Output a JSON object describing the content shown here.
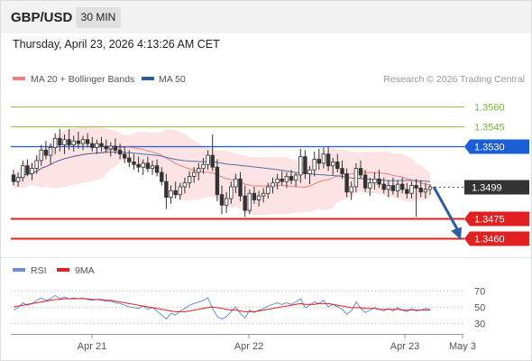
{
  "header": {
    "symbol": "GBP/USD",
    "timeframe": "30 MIN",
    "datetime": "Thursday, April 23, 2026 4:13:26 AM CET"
  },
  "legend": {
    "ma20_label": "MA 20 + Bollinger Bands",
    "ma50_label": "MA 50",
    "copyright": "Research © 2026 Trading Central",
    "ma20_color": "#f08080",
    "ma50_color": "#2c5f9e",
    "band_color": "#fde3e3"
  },
  "chart_data": {
    "type": "candlestick",
    "price_axis": {
      "ylim": [
        1.3448,
        1.3572
      ]
    },
    "levels": [
      {
        "price": "1.3560",
        "style": "green-line",
        "color": "#8dc63f"
      },
      {
        "price": "1.3545",
        "style": "green-line",
        "color": "#8dc63f"
      },
      {
        "price": "1.3530",
        "style": "resistance",
        "color": "#1a5fd6"
      },
      {
        "price": "1.3499",
        "style": "last-price",
        "color": "#333333"
      },
      {
        "price": "1.3475",
        "style": "support",
        "color": "#e02020"
      },
      {
        "price": "1.3460",
        "style": "support",
        "color": "#e02020"
      }
    ],
    "projection": {
      "from": 1.3499,
      "to": 1.346,
      "color": "#2c5f9e"
    },
    "x_labels": [
      "Apr 21",
      "Apr 22",
      "Apr 23",
      "May 3"
    ],
    "ohlc": [
      [
        1.3508,
        1.3512,
        1.35,
        1.3503
      ],
      [
        1.3503,
        1.351,
        1.3499,
        1.3506
      ],
      [
        1.3506,
        1.3519,
        1.3503,
        1.3515
      ],
      [
        1.3515,
        1.352,
        1.3507,
        1.3509
      ],
      [
        1.3509,
        1.3517,
        1.3504,
        1.3513
      ],
      [
        1.3513,
        1.3523,
        1.3509,
        1.3519
      ],
      [
        1.3519,
        1.3531,
        1.3515,
        1.3527
      ],
      [
        1.3527,
        1.3534,
        1.352,
        1.3523
      ],
      [
        1.3523,
        1.3532,
        1.3516,
        1.3529
      ],
      [
        1.3529,
        1.354,
        1.3524,
        1.3536
      ],
      [
        1.3536,
        1.3543,
        1.3526,
        1.3531
      ],
      [
        1.3531,
        1.3539,
        1.3524,
        1.3535
      ],
      [
        1.3535,
        1.3543,
        1.3527,
        1.3531
      ],
      [
        1.3531,
        1.3538,
        1.3526,
        1.3534
      ],
      [
        1.3534,
        1.3541,
        1.3528,
        1.3532
      ],
      [
        1.3532,
        1.3538,
        1.3527,
        1.3535
      ],
      [
        1.3535,
        1.354,
        1.3529,
        1.3532
      ],
      [
        1.3532,
        1.3537,
        1.3526,
        1.3529
      ],
      [
        1.3529,
        1.3535,
        1.3524,
        1.3532
      ],
      [
        1.3532,
        1.3537,
        1.3526,
        1.353
      ],
      [
        1.353,
        1.3535,
        1.3525,
        1.3528
      ],
      [
        1.3528,
        1.3533,
        1.3522,
        1.353
      ],
      [
        1.353,
        1.3536,
        1.3524,
        1.3527
      ],
      [
        1.3527,
        1.3532,
        1.352,
        1.3524
      ],
      [
        1.3524,
        1.353,
        1.3517,
        1.3521
      ],
      [
        1.3521,
        1.3527,
        1.3514,
        1.3518
      ],
      [
        1.3518,
        1.3524,
        1.3512,
        1.3516
      ],
      [
        1.3516,
        1.3522,
        1.351,
        1.3514
      ],
      [
        1.3514,
        1.352,
        1.3508,
        1.3517
      ],
      [
        1.3517,
        1.3522,
        1.351,
        1.3513
      ],
      [
        1.3513,
        1.3519,
        1.3508,
        1.3515
      ],
      [
        1.3515,
        1.352,
        1.3507,
        1.351
      ],
      [
        1.351,
        1.3514,
        1.35,
        1.3503
      ],
      [
        1.3503,
        1.3509,
        1.3482,
        1.3491
      ],
      [
        1.3491,
        1.35,
        1.3486,
        1.3496
      ],
      [
        1.3496,
        1.3503,
        1.349,
        1.3493
      ],
      [
        1.3493,
        1.3502,
        1.3489,
        1.3499
      ],
      [
        1.3499,
        1.3506,
        1.3494,
        1.3502
      ],
      [
        1.3502,
        1.3511,
        1.3498,
        1.3507
      ],
      [
        1.3507,
        1.3514,
        1.3502,
        1.351
      ],
      [
        1.351,
        1.3517,
        1.3504,
        1.3513
      ],
      [
        1.3513,
        1.3521,
        1.3509,
        1.3516
      ],
      [
        1.3516,
        1.3527,
        1.3512,
        1.3523
      ],
      [
        1.3523,
        1.3539,
        1.3511,
        1.3514
      ],
      [
        1.3514,
        1.352,
        1.3488,
        1.3493
      ],
      [
        1.3493,
        1.35,
        1.3478,
        1.3485
      ],
      [
        1.3485,
        1.3495,
        1.3479,
        1.349
      ],
      [
        1.349,
        1.3503,
        1.3486,
        1.3499
      ],
      [
        1.3499,
        1.3509,
        1.3494,
        1.3505
      ],
      [
        1.3505,
        1.351,
        1.3488,
        1.3492
      ],
      [
        1.3492,
        1.35,
        1.3476,
        1.3481
      ],
      [
        1.3481,
        1.3497,
        1.3478,
        1.3494
      ],
      [
        1.3494,
        1.3499,
        1.3486,
        1.3489
      ],
      [
        1.3489,
        1.3496,
        1.3484,
        1.3492
      ],
      [
        1.3492,
        1.3498,
        1.3487,
        1.3494
      ],
      [
        1.3494,
        1.3502,
        1.349,
        1.3499
      ],
      [
        1.3499,
        1.3506,
        1.3494,
        1.3502
      ],
      [
        1.3502,
        1.3509,
        1.3497,
        1.3505
      ],
      [
        1.3505,
        1.3511,
        1.35,
        1.3503
      ],
      [
        1.3503,
        1.351,
        1.3498,
        1.3507
      ],
      [
        1.3507,
        1.3512,
        1.3501,
        1.3504
      ],
      [
        1.3504,
        1.351,
        1.3499,
        1.3508
      ],
      [
        1.3508,
        1.3528,
        1.3502,
        1.3522
      ],
      [
        1.3522,
        1.3527,
        1.3505,
        1.3509
      ],
      [
        1.3509,
        1.3515,
        1.3501,
        1.3512
      ],
      [
        1.3512,
        1.3526,
        1.3507,
        1.352
      ],
      [
        1.352,
        1.3528,
        1.3512,
        1.3517
      ],
      [
        1.3517,
        1.3529,
        1.3513,
        1.3524
      ],
      [
        1.3524,
        1.353,
        1.3511,
        1.3515
      ],
      [
        1.3515,
        1.3521,
        1.3508,
        1.3518
      ],
      [
        1.3518,
        1.3524,
        1.351,
        1.3513
      ],
      [
        1.3513,
        1.3519,
        1.3505,
        1.3509
      ],
      [
        1.3509,
        1.3513,
        1.3491,
        1.3495
      ],
      [
        1.3495,
        1.3503,
        1.3489,
        1.3499
      ],
      [
        1.3499,
        1.3517,
        1.3495,
        1.3513
      ],
      [
        1.3513,
        1.3519,
        1.3505,
        1.3508
      ],
      [
        1.3508,
        1.3512,
        1.3495,
        1.3498
      ],
      [
        1.3498,
        1.3506,
        1.3492,
        1.3502
      ],
      [
        1.3502,
        1.351,
        1.3497,
        1.3505
      ],
      [
        1.3505,
        1.3512,
        1.3498,
        1.3501
      ],
      [
        1.3501,
        1.3506,
        1.3494,
        1.3497
      ],
      [
        1.3497,
        1.3504,
        1.3491,
        1.35
      ],
      [
        1.35,
        1.3506,
        1.3493,
        1.3496
      ],
      [
        1.3496,
        1.3504,
        1.3491,
        1.3501
      ],
      [
        1.3501,
        1.3506,
        1.3494,
        1.3497
      ],
      [
        1.3497,
        1.3502,
        1.349,
        1.3494
      ],
      [
        1.3494,
        1.3503,
        1.349,
        1.35
      ],
      [
        1.35,
        1.3505,
        1.3476,
        1.3498
      ],
      [
        1.3498,
        1.3504,
        1.3491,
        1.3495
      ],
      [
        1.3495,
        1.3502,
        1.349,
        1.3497
      ],
      [
        1.3497,
        1.3501,
        1.3493,
        1.3499
      ]
    ],
    "rsi_panel": {
      "legend": [
        {
          "name": "RSI",
          "color": "#6a8fd8"
        },
        {
          "name": "9MA",
          "color": "#e02020"
        }
      ],
      "ylim": [
        20,
        80
      ],
      "ticks": [
        "70",
        "50",
        "30"
      ],
      "rsi": [
        46,
        49,
        55,
        52,
        54,
        58,
        61,
        58,
        60,
        64,
        60,
        62,
        60,
        61,
        60,
        61,
        59,
        58,
        59,
        58,
        57,
        57,
        55,
        54,
        52,
        50,
        49,
        48,
        51,
        47,
        49,
        45,
        40,
        35,
        42,
        40,
        45,
        48,
        52,
        54,
        56,
        58,
        61,
        48,
        38,
        35,
        38,
        44,
        50,
        42,
        36,
        46,
        43,
        46,
        48,
        51,
        53,
        55,
        53,
        55,
        53,
        56,
        60,
        49,
        52,
        56,
        54,
        58,
        50,
        53,
        50,
        47,
        41,
        45,
        56,
        48,
        43,
        46,
        49,
        47,
        45,
        48,
        45,
        49,
        46,
        44,
        48,
        45,
        46,
        48,
        47
      ],
      "ma9": [
        50,
        51,
        52,
        53,
        54,
        55,
        56,
        57,
        58,
        59,
        59,
        60,
        60,
        60,
        60,
        60,
        60,
        59,
        59,
        59,
        58,
        58,
        57,
        56,
        55,
        54,
        53,
        52,
        51,
        50,
        49,
        48,
        47,
        46,
        45,
        44,
        44,
        44,
        45,
        46,
        47,
        48,
        49,
        50,
        49,
        48,
        47,
        46,
        46,
        45,
        44,
        44,
        44,
        45,
        46,
        47,
        48,
        49,
        50,
        51,
        52,
        53,
        54,
        53,
        53,
        53,
        54,
        54,
        54,
        53,
        52,
        51,
        50,
        49,
        49,
        49,
        48,
        48,
        48,
        47,
        47,
        47,
        47,
        47,
        46,
        46,
        46,
        46,
        46,
        46,
        46
      ]
    }
  }
}
